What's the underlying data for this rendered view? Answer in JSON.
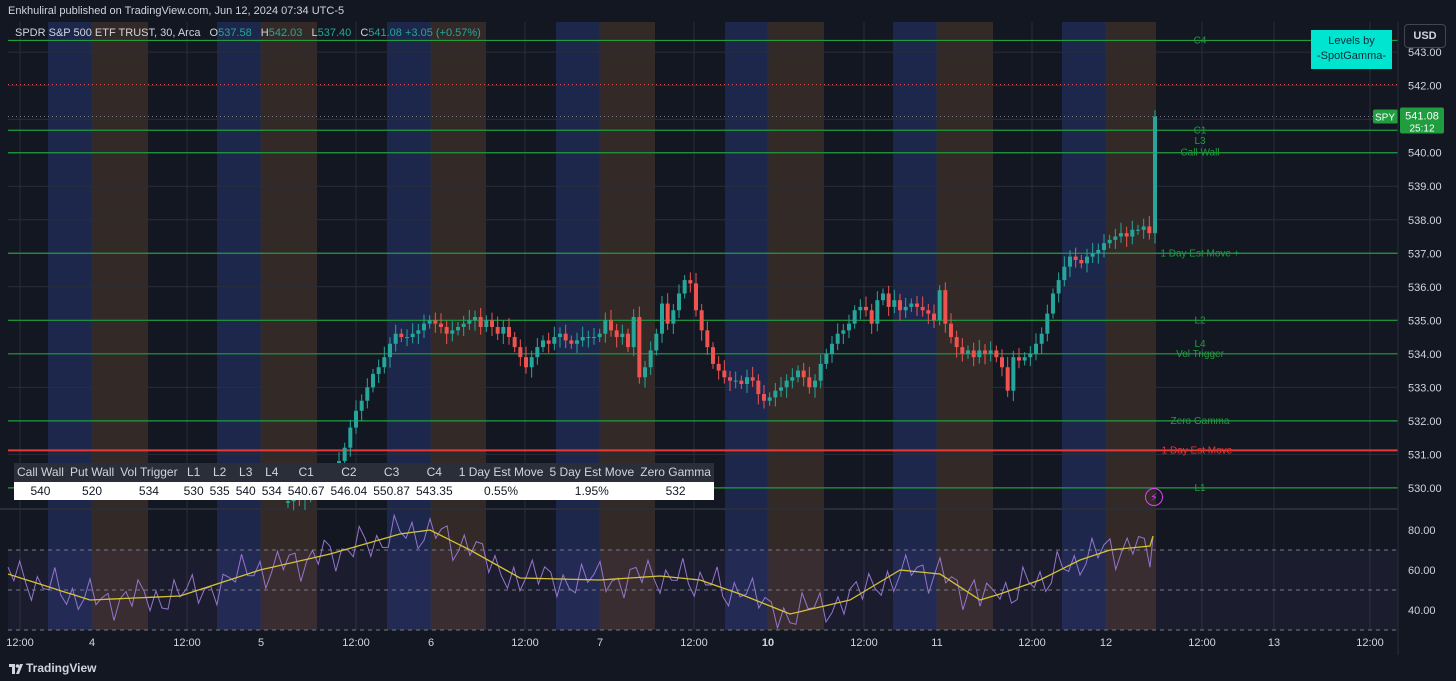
{
  "header": {
    "published": "Enkhuliral published on TradingView.com, Jun 12, 2024 07:34 UTC-5",
    "symbol": "SPDR S&P 500 ETF TRUST, 30, Arca",
    "o_label": "O",
    "o": "537.58",
    "h_label": "H",
    "h": "542.03",
    "l_label": "L",
    "l": "537.40",
    "c_label": "C",
    "c": "541.08",
    "change": "+3.05 (+0.57%)",
    "currency": "USD"
  },
  "brand": {
    "line1": "Levels by",
    "line2": "-SpotGamma-"
  },
  "price_tag": {
    "symbol": "SPY",
    "price": "541.08",
    "countdown": "25:12"
  },
  "footer": {
    "logo": "TradingView"
  },
  "colors": {
    "up": "#26a69a",
    "down": "#ef5350",
    "level": "#1f9d3f",
    "red_level": "#e53935",
    "rsi": "#9575cd",
    "rsi_ma": "#d4c236",
    "band_blue": "#1e2a52",
    "band_orange": "#3a2e28"
  },
  "level_table": {
    "headers": [
      "Call Wall",
      "Put Wall",
      "Vol Trigger",
      "L1",
      "L2",
      "L3",
      "L4",
      "C1",
      "C2",
      "C3",
      "C4",
      "1 Day Est Move",
      "5 Day Est Move",
      "Zero Gamma"
    ],
    "values": [
      "540",
      "520",
      "534",
      "530",
      "535",
      "540",
      "534",
      "540.67",
      "546.04",
      "550.87",
      "543.35",
      "0.55%",
      "1.95%",
      "532"
    ]
  },
  "chart_data": {
    "type": "candlestick",
    "x_ticks": [
      "12:00",
      "4",
      "12:00",
      "5",
      "12:00",
      "6",
      "12:00",
      "7",
      "12:00",
      "10",
      "12:00",
      "11",
      "12:00",
      "12",
      "12:00",
      "13",
      "12:00"
    ],
    "y_ticks": [
      543.0,
      542.0,
      541.0,
      540.0,
      539.0,
      538.0,
      537.0,
      536.0,
      535.0,
      534.0,
      533.0,
      532.0,
      531.0,
      530.0
    ],
    "ylim": [
      529.4,
      543.9
    ],
    "levels": [
      {
        "label": "C4",
        "value": 543.35,
        "color": "green"
      },
      {
        "label": "C1",
        "value": 540.67,
        "color": "green"
      },
      {
        "label": "L3",
        "value": 540.35,
        "color": "green"
      },
      {
        "label": "Call Wall",
        "value": 540.0,
        "color": "green"
      },
      {
        "label": "1 Day Est Move +",
        "value": 537.0,
        "color": "green"
      },
      {
        "label": "L2",
        "value": 535.0,
        "color": "green"
      },
      {
        "label": "L4",
        "value": 534.3,
        "color": "green"
      },
      {
        "label": "Vol Trigger",
        "value": 534.0,
        "color": "green"
      },
      {
        "label": "Zero Gamma",
        "value": 532.0,
        "color": "green"
      },
      {
        "label": "1 Day Est Move -",
        "value": 531.12,
        "color": "red"
      },
      {
        "label": "L1",
        "value": 530.0,
        "color": "green"
      }
    ],
    "dotted_levels": [
      542.03,
      541.08
    ],
    "candles_close": [
      529.6,
      529.7,
      529.65,
      529.8,
      529.9,
      530.1,
      530.0,
      530.3,
      530.5,
      530.8,
      531.2,
      531.8,
      532.3,
      532.6,
      533.0,
      533.4,
      533.6,
      533.9,
      534.3,
      534.6,
      534.5,
      534.5,
      534.6,
      534.7,
      534.9,
      535.0,
      534.9,
      534.8,
      534.6,
      534.7,
      534.8,
      534.9,
      535.0,
      535.1,
      534.8,
      535.0,
      534.8,
      534.6,
      534.8,
      534.5,
      534.2,
      533.9,
      533.6,
      533.9,
      534.2,
      534.4,
      534.3,
      534.5,
      534.6,
      534.4,
      534.3,
      534.4,
      534.5,
      534.5,
      534.5,
      534.6,
      535.0,
      534.7,
      534.5,
      534.6,
      534.2,
      535.1,
      533.3,
      533.6,
      534.1,
      534.6,
      535.5,
      534.9,
      535.3,
      535.8,
      536.2,
      536.1,
      535.3,
      534.7,
      534.2,
      533.7,
      533.5,
      533.3,
      533.2,
      533.2,
      533.1,
      533.3,
      533.2,
      532.8,
      532.6,
      532.7,
      532.9,
      533.0,
      533.2,
      533.3,
      533.5,
      533.3,
      533.0,
      533.2,
      533.7,
      534.0,
      534.3,
      534.6,
      534.7,
      534.9,
      535.3,
      535.4,
      535.3,
      534.9,
      535.6,
      535.8,
      535.4,
      535.6,
      535.3,
      535.4,
      535.5,
      535.4,
      535.3,
      535.2,
      535.0,
      535.9,
      534.9,
      534.5,
      534.2,
      534.0,
      534.1,
      533.9,
      534.1,
      534.0,
      534.1,
      533.9,
      533.6,
      532.9,
      533.9,
      533.8,
      533.9,
      534.0,
      534.3,
      534.6,
      535.2,
      535.8,
      536.2,
      536.6,
      536.9,
      536.8,
      536.7,
      536.9,
      537.0,
      537.1,
      537.3,
      537.4,
      537.5,
      537.6,
      537.5,
      537.7,
      537.7,
      537.8,
      537.6,
      541.08
    ],
    "rsi": {
      "ylim": [
        30,
        90
      ],
      "y_ticks": [
        80.0,
        60.0,
        40.0
      ],
      "overbought": 70,
      "oversold": 30,
      "mid": 50
    }
  }
}
